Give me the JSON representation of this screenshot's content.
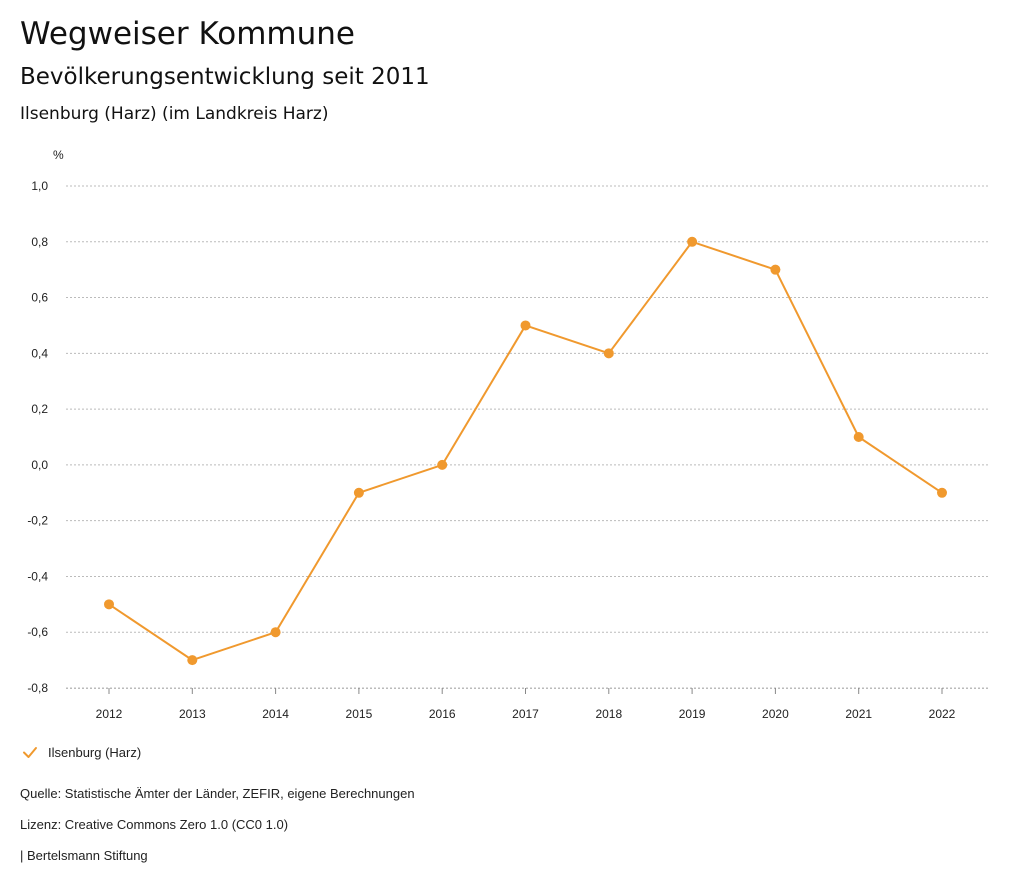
{
  "header": {
    "title": "Wegweiser Kommune",
    "subtitle": "Bevölkerungsentwicklung seit 2011",
    "region": "Ilsenburg (Harz) (im Landkreis Harz)"
  },
  "colors": {
    "series": "#f0992e",
    "grid": "#bbbbbb",
    "text": "#222222"
  },
  "chart_data": {
    "type": "line",
    "title": "Bevölkerungsentwicklung seit 2011",
    "xlabel": "",
    "ylabel": "%",
    "x": [
      "2012",
      "2013",
      "2014",
      "2015",
      "2016",
      "2017",
      "2018",
      "2019",
      "2020",
      "2021",
      "2022"
    ],
    "series": [
      {
        "name": "Ilsenburg (Harz)",
        "values": [
          -0.5,
          -0.7,
          -0.6,
          -0.1,
          0.0,
          0.5,
          0.4,
          0.8,
          0.7,
          0.1,
          -0.1
        ]
      }
    ],
    "ylim": [
      -0.8,
      1.0
    ],
    "yticks": [
      1.0,
      0.8,
      0.6,
      0.4,
      0.2,
      0.0,
      -0.2,
      -0.4,
      -0.6,
      -0.8
    ],
    "ytick_labels": [
      "1,0",
      "0,8",
      "0,6",
      "0,4",
      "0,2",
      "0,0",
      "-0,2",
      "-0,4",
      "-0,6",
      "-0,8"
    ],
    "grid": true,
    "legend": "bottom-left"
  },
  "legend": {
    "label": "Ilsenburg (Harz)"
  },
  "footer": {
    "source": "Quelle: Statistische Ämter der Länder, ZEFIR, eigene Berechnungen",
    "license": "Lizenz: Creative Commons Zero 1.0 (CC0 1.0)",
    "brand": "| Bertelsmann Stiftung"
  }
}
